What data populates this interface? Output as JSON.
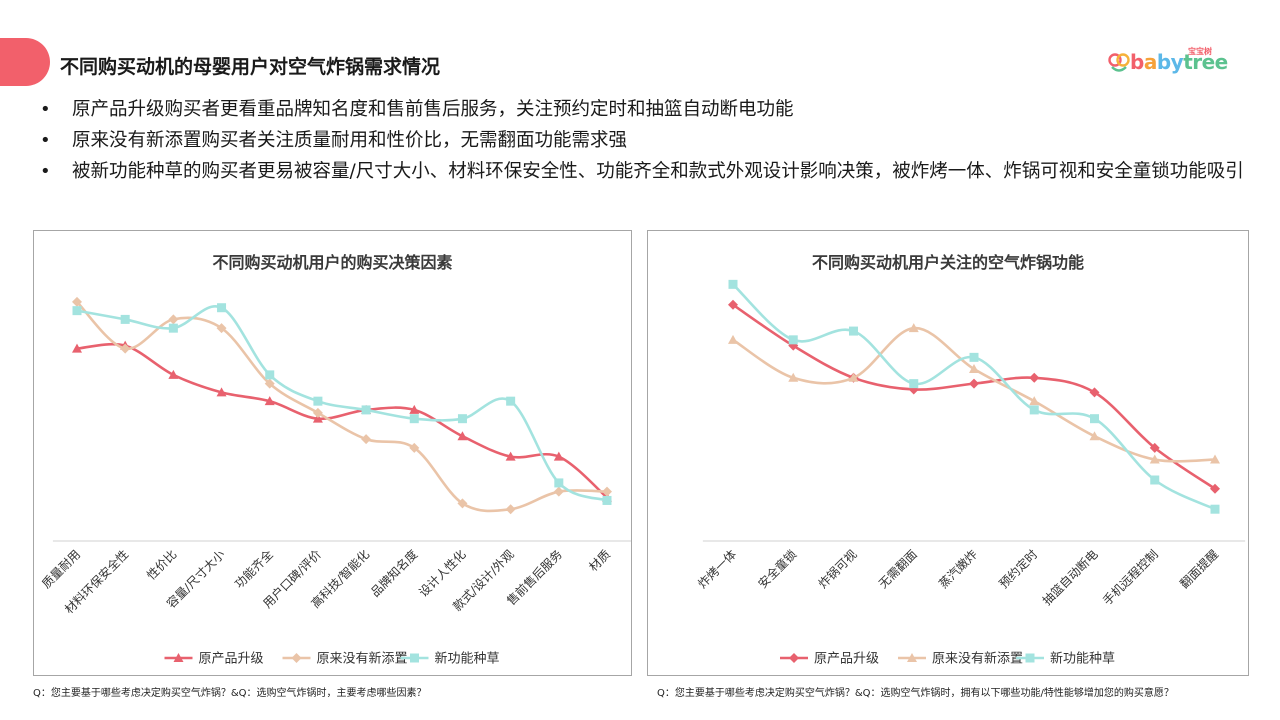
{
  "header": {
    "title": "不同购买动机的母婴用户对空气炸锅需求情况",
    "logo_text": "babytree",
    "logo_sub": "宝宝树"
  },
  "bullets": [
    "原产品升级购买者更看重品牌知名度和售前售后服务，关注预约定时和抽篮自动断电功能",
    "原来没有新添置购买者关注质量耐用和性价比，无需翻面功能需求强",
    "被新功能种草的购买者更易被容量/尺寸大小、材料环保安全性、功能齐全和款式外观设计影响决策，被炸烤一体、炸锅可视和安全童锁功能吸引"
  ],
  "footnotes": {
    "left": "Q：您主要基于哪些考虑决定购买空气炸锅？&Q：选购空气炸锅时，主要考虑哪些因素？",
    "right": "Q：您主要基于哪些考虑决定购买空气炸锅？&Q：选购空气炸锅时，拥有以下哪些功能/特性能够增加您的购买意愿？"
  },
  "colors": {
    "accent": "#f2606b",
    "series": [
      "#e8616e",
      "#eac4a8",
      "#a3e3df"
    ]
  },
  "chart_data": [
    {
      "type": "line",
      "title": "不同购买动机用户的购买决策因素",
      "categories": [
        "质量耐用",
        "材料环保安全性",
        "性价比",
        "容量/尺寸大小",
        "功能齐全",
        "用户口碑/评价",
        "高科技/智能化",
        "品牌知名度",
        "设计人性化",
        "款式/设计/外观",
        "售前售后服务",
        "材质"
      ],
      "ylim": [
        0,
        1
      ],
      "grid": false,
      "legend_position": "bottom",
      "series": [
        {
          "name": "原产品升级",
          "marker": "triangle",
          "values": [
            0.7,
            0.71,
            0.61,
            0.55,
            0.52,
            0.46,
            0.49,
            0.49,
            0.4,
            0.33,
            0.33,
            0.19
          ]
        },
        {
          "name": "原来没有新添置",
          "marker": "diamond",
          "values": [
            0.86,
            0.7,
            0.8,
            0.77,
            0.58,
            0.48,
            0.39,
            0.36,
            0.17,
            0.15,
            0.21,
            0.21
          ]
        },
        {
          "name": "新功能种草",
          "marker": "square",
          "values": [
            0.83,
            0.8,
            0.77,
            0.84,
            0.61,
            0.52,
            0.49,
            0.46,
            0.46,
            0.52,
            0.24,
            0.18
          ]
        }
      ]
    },
    {
      "type": "line",
      "title": "不同购买动机用户关注的空气炸锅功能",
      "categories": [
        "炸烤一体",
        "安全童锁",
        "炸锅可视",
        "无需翻面",
        "蒸汽嫩炸",
        "预约定时",
        "抽篮自动断电",
        "手机远程控制",
        "翻面提醒"
      ],
      "ylim": [
        0,
        1
      ],
      "grid": false,
      "legend_position": "bottom",
      "series": [
        {
          "name": "原产品升级",
          "marker": "diamond",
          "values": [
            0.85,
            0.71,
            0.6,
            0.56,
            0.58,
            0.6,
            0.55,
            0.36,
            0.22
          ]
        },
        {
          "name": "原来没有新添置",
          "marker": "triangle",
          "values": [
            0.73,
            0.6,
            0.6,
            0.77,
            0.63,
            0.52,
            0.4,
            0.32,
            0.32
          ]
        },
        {
          "name": "新功能种草",
          "marker": "square",
          "values": [
            0.92,
            0.73,
            0.76,
            0.58,
            0.67,
            0.49,
            0.46,
            0.25,
            0.15
          ]
        }
      ]
    }
  ]
}
